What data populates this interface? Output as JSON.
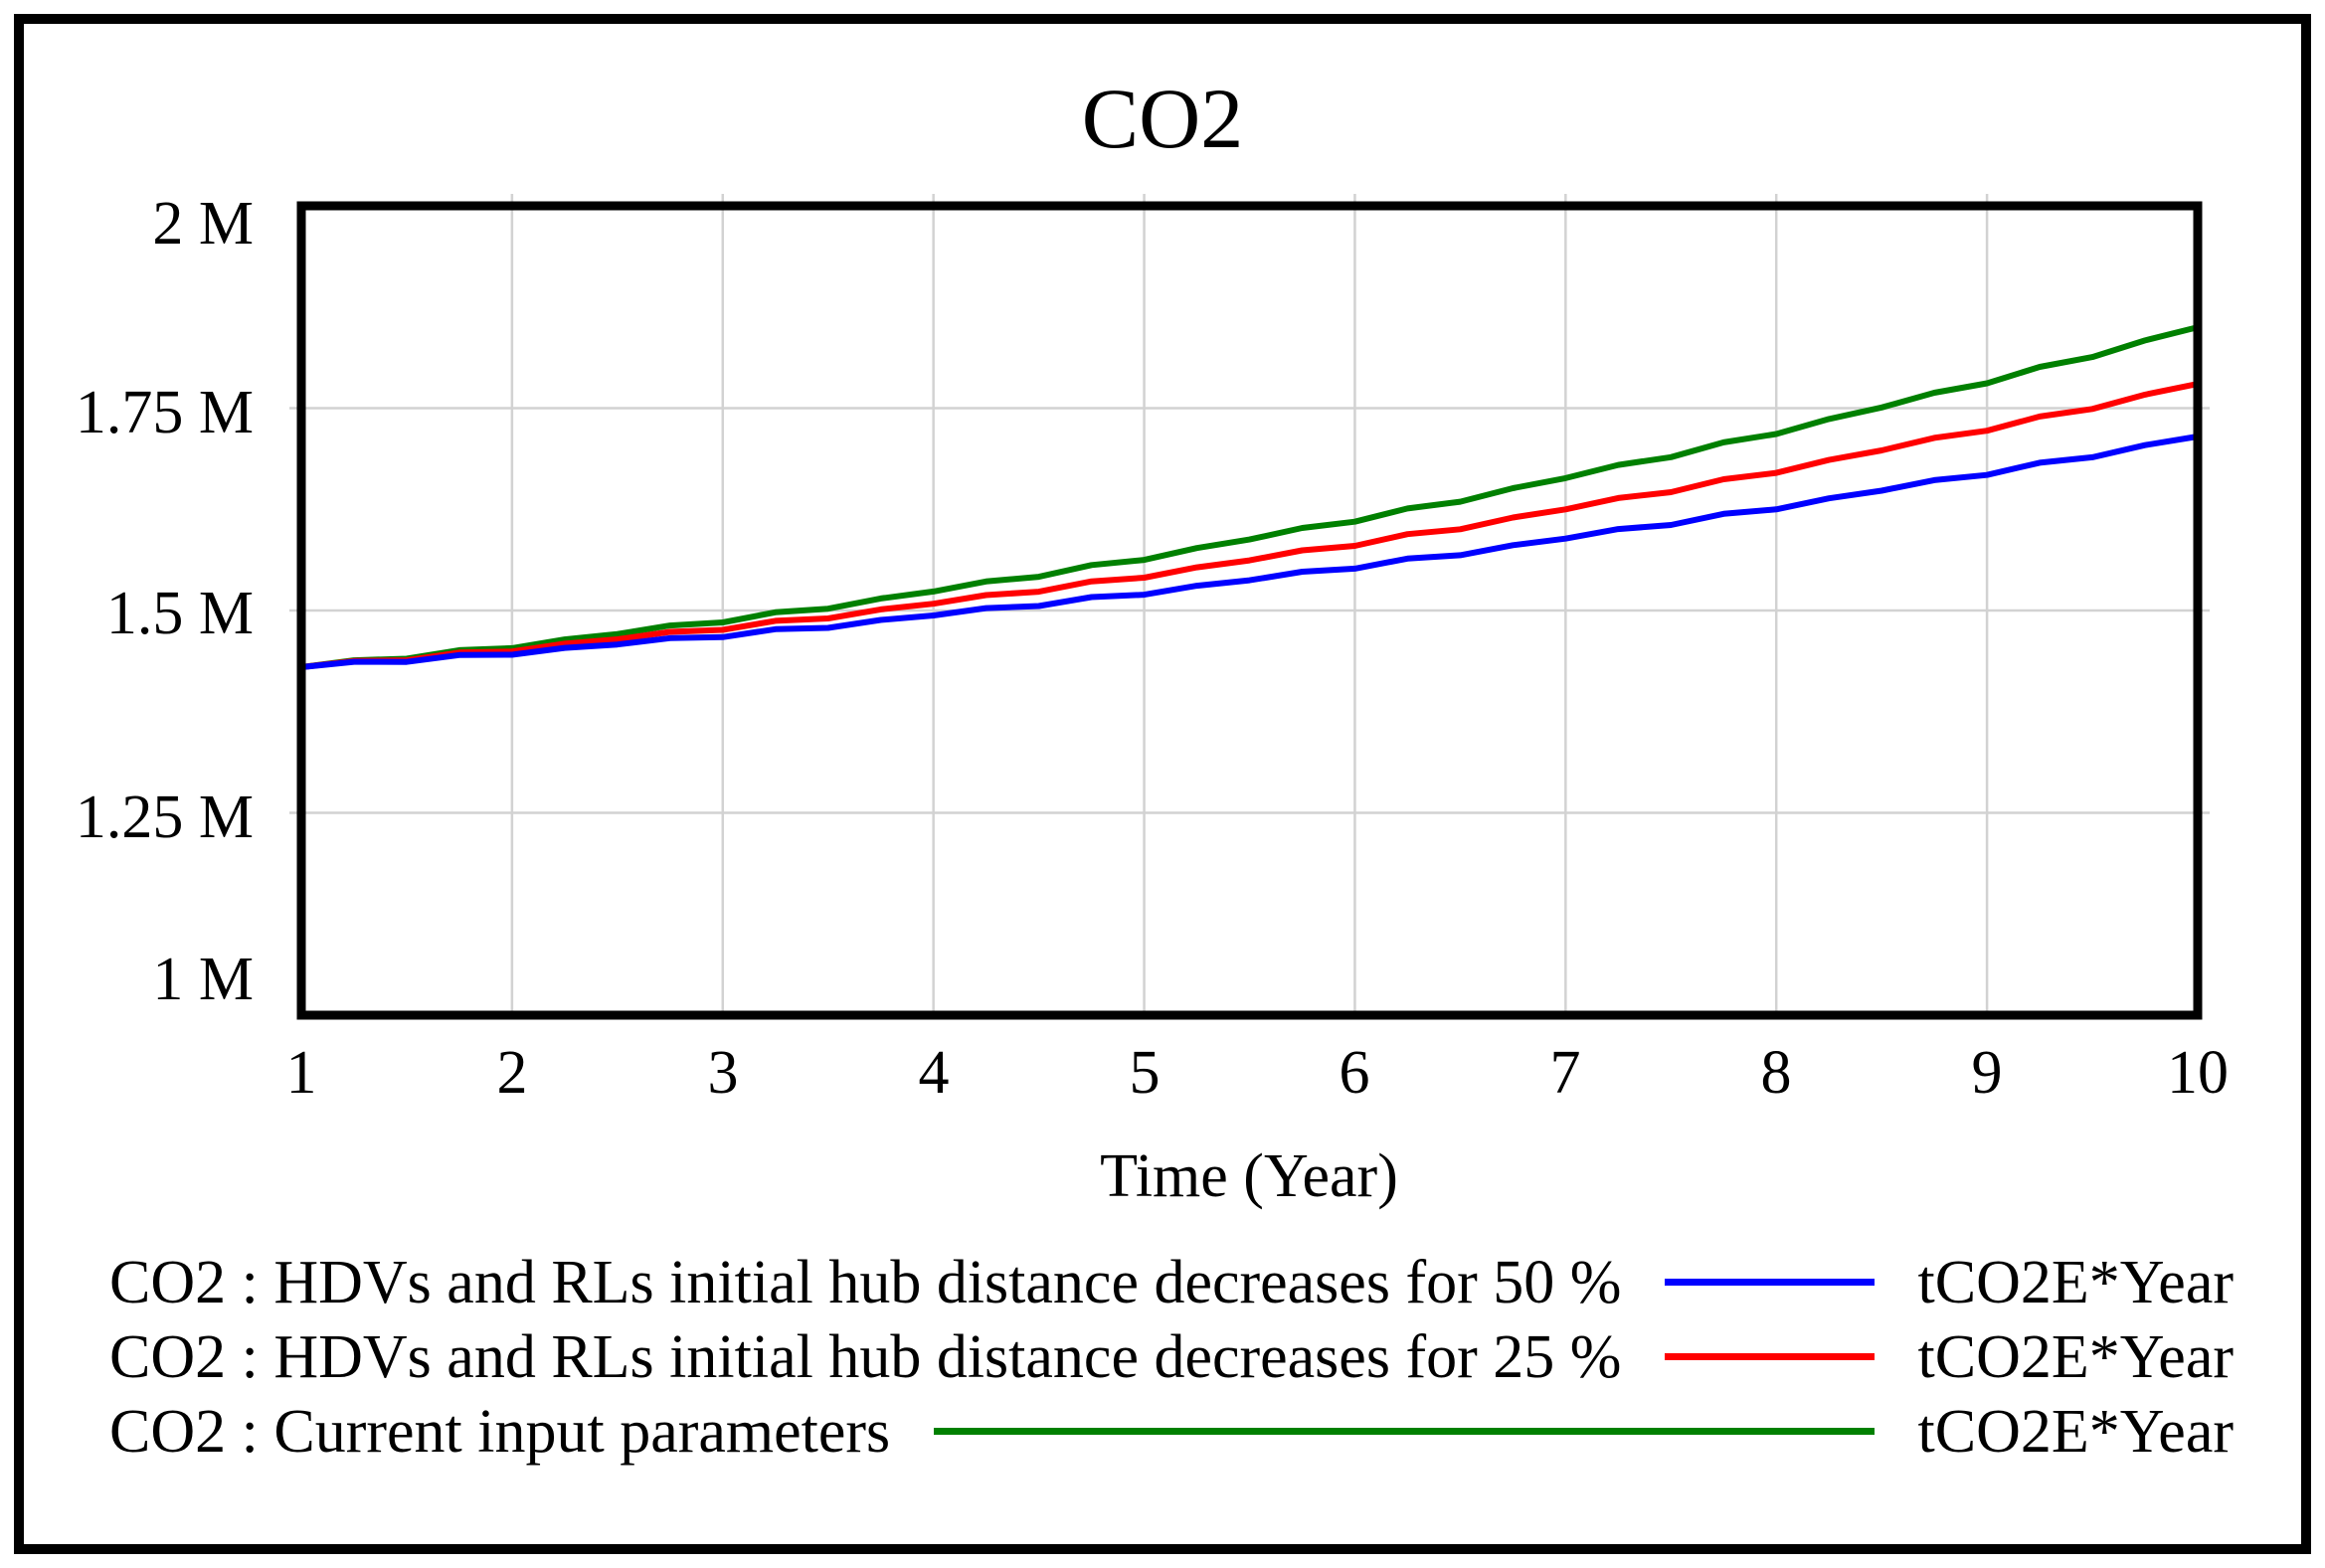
{
  "title": "CO2",
  "x_axis": {
    "label": "Time (Year)",
    "ticks": [
      "1",
      "2",
      "3",
      "4",
      "5",
      "6",
      "7",
      "8",
      "9",
      "10"
    ]
  },
  "y_axis": {
    "ticks": [
      "2 M",
      "1.75 M",
      "1.5 M",
      "1.25 M",
      "1 M"
    ]
  },
  "legend": {
    "items": [
      {
        "label": "CO2 : HDVs and RLs initial hub distance decreases for 50 %",
        "units": "tCO2E*Year",
        "color": "#0000ff"
      },
      {
        "label": "CO2 : HDVs and RLs initial hub distance decreases for 25 %",
        "units": "tCO2E*Year",
        "color": "#ff0000"
      },
      {
        "label": "CO2 : Current input parameters",
        "units": "tCO2E*Year",
        "color": "#008000"
      }
    ]
  },
  "colors": {
    "grid": "#d2d2d2",
    "axis": "#000000",
    "background": "#ffffff",
    "blue_series": "#0000ff",
    "red_series": "#ff0000",
    "green_series": "#008000"
  },
  "chart_data": {
    "type": "line",
    "title": "CO2",
    "xlabel": "Time (Year)",
    "ylabel": "",
    "units": "tCO2E*Year",
    "x_range": [
      1,
      10
    ],
    "y_range_tCO2E": [
      1000000,
      2000000
    ],
    "x_tick_values": [
      1,
      2,
      3,
      4,
      5,
      6,
      7,
      8,
      9,
      10
    ],
    "y_tick_values_M": [
      1,
      1.25,
      1.5,
      1.75,
      2
    ],
    "grid": true,
    "legend_position": "below",
    "x": [
      1,
      1.25,
      1.5,
      1.75,
      2,
      2.25,
      2.5,
      2.75,
      3,
      3.25,
      3.5,
      3.75,
      4,
      4.25,
      4.5,
      4.75,
      5,
      5.25,
      5.5,
      5.75,
      6,
      6.25,
      6.5,
      6.75,
      7,
      7.25,
      7.5,
      7.75,
      8,
      8.25,
      8.5,
      8.75,
      9,
      9.25,
      9.5,
      9.75,
      10
    ],
    "series": [
      {
        "name": "CO2 : HDVs and RLs initial hub distance decreases for 50 %",
        "color": "#0000ff",
        "values_M": [
          1.43,
          1.4366,
          1.4365,
          1.445,
          1.4453,
          1.4538,
          1.458,
          1.4659,
          1.4671,
          1.4769,
          1.4785,
          1.4883,
          1.4938,
          1.503,
          1.5055,
          1.5166,
          1.5195,
          1.5306,
          1.5374,
          1.5479,
          1.5517,
          1.5641,
          1.5683,
          1.5807,
          1.5888,
          1.6006,
          1.6057,
          1.6194,
          1.6249,
          1.6386,
          1.648,
          1.6611,
          1.6675,
          1.6825,
          1.6893,
          1.7043,
          1.715
        ]
      },
      {
        "name": "CO2 : HDVs and RLs initial hub distance decreases for 25 %",
        "color": "#ff0000",
        "values_M": [
          1.43,
          1.4376,
          1.4384,
          1.448,
          1.4494,
          1.459,
          1.4644,
          1.4736,
          1.476,
          1.4872,
          1.4902,
          1.5014,
          1.5084,
          1.5191,
          1.5232,
          1.536,
          1.5405,
          1.5533,
          1.5619,
          1.5743,
          1.5799,
          1.5943,
          1.6004,
          1.6149,
          1.625,
          1.639,
          1.6462,
          1.6622,
          1.67,
          1.686,
          1.6978,
          1.7133,
          1.7221,
          1.7397,
          1.749,
          1.7667,
          1.78
        ]
      },
      {
        "name": "CO2 : Current input parameters",
        "color": "#008000",
        "values_M": [
          1.43,
          1.4385,
          1.4404,
          1.451,
          1.4535,
          1.4643,
          1.4709,
          1.4814,
          1.4852,
          1.4978,
          1.5022,
          1.5149,
          1.5235,
          1.5359,
          1.5416,
          1.5561,
          1.5625,
          1.5772,
          1.5877,
          1.602,
          1.6097,
          1.6261,
          1.6344,
          1.6511,
          1.6635,
          1.6798,
          1.6894,
          1.7078,
          1.718,
          1.7366,
          1.7509,
          1.7691,
          1.7807,
          1.801,
          1.8132,
          1.8337,
          1.85
        ]
      }
    ]
  }
}
